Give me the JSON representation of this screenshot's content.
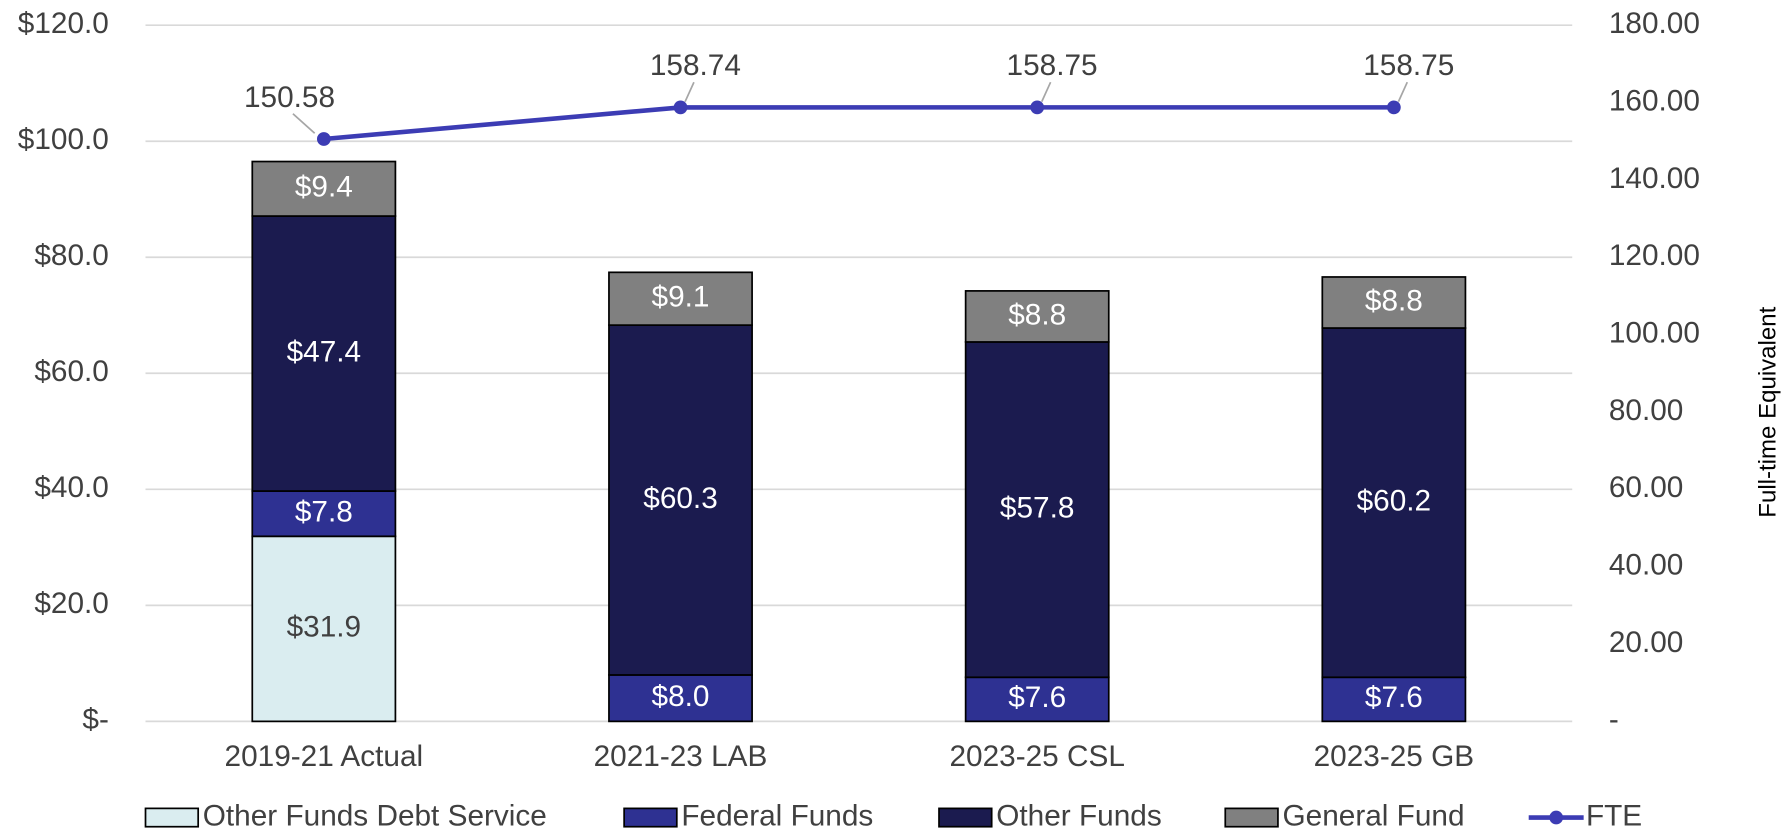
{
  "chart_data": {
    "type": "bar",
    "stacked": true,
    "categories": [
      "2019-21 Actual",
      "2021-23 LAB",
      "2023-25 CSL",
      "2023-25 GB"
    ],
    "series": [
      {
        "name": "Other Funds Debt Service",
        "color": "#daedf0",
        "label_color": "#404040",
        "values": [
          31.9,
          null,
          null,
          null
        ],
        "value_labels": [
          "$31.9",
          null,
          null,
          null
        ]
      },
      {
        "name": "Federal Funds",
        "color": "#2e3192",
        "label_color": "#ffffff",
        "values": [
          7.8,
          8.0,
          7.6,
          7.6
        ],
        "value_labels": [
          "$7.8",
          "$8.0",
          "$7.6",
          "$7.6"
        ]
      },
      {
        "name": "Other Funds",
        "color": "#1b1b4f",
        "label_color": "#ffffff",
        "values": [
          47.4,
          60.3,
          57.8,
          60.2
        ],
        "value_labels": [
          "$47.4",
          "$60.3",
          "$57.8",
          "$60.2"
        ]
      },
      {
        "name": "General Fund",
        "color": "#808080",
        "label_color": "#ffffff",
        "values": [
          9.4,
          9.1,
          8.8,
          8.8
        ],
        "value_labels": [
          "$9.4",
          "$9.1",
          "$8.8",
          "$8.8"
        ]
      },
      {
        "name": "FTE",
        "type": "line",
        "axis": "y2",
        "color": "#3c3cb4",
        "values": [
          150.58,
          158.74,
          158.75,
          158.75
        ]
      }
    ],
    "ylim": [
      0,
      120
    ],
    "yticks": [
      {
        "value": 0,
        "label": "$-"
      },
      {
        "value": 20,
        "label": "$20.0"
      },
      {
        "value": 40,
        "label": "$40.0"
      },
      {
        "value": 60,
        "label": "$60.0"
      },
      {
        "value": 80,
        "label": "$80.0"
      },
      {
        "value": 100,
        "label": "$100.0"
      },
      {
        "value": 120,
        "label": "$120.0"
      }
    ],
    "y2lim": [
      0,
      180
    ],
    "y2ticks": [
      {
        "value": 0,
        "label": "-"
      },
      {
        "value": 20,
        "label": "20.00"
      },
      {
        "value": 40,
        "label": "40.00"
      },
      {
        "value": 60,
        "label": "60.00"
      },
      {
        "value": 80,
        "label": "80.00"
      },
      {
        "value": 100,
        "label": "100.00"
      },
      {
        "value": 120,
        "label": "120.00"
      },
      {
        "value": 140,
        "label": "140.00"
      },
      {
        "value": 160,
        "label": "160.00"
      },
      {
        "value": 180,
        "label": "180.00"
      }
    ],
    "y2label": "Full-time Equivalent",
    "grid": true,
    "legend": "bottom"
  }
}
